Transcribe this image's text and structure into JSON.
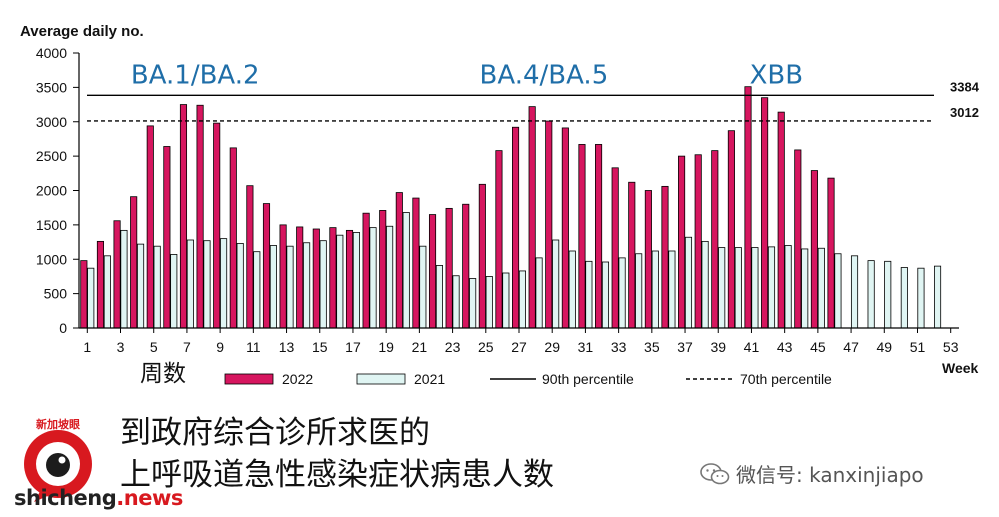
{
  "chart_data": {
    "type": "bar",
    "ylabel": "Average daily no.",
    "xlabel": "Week",
    "ylim": [
      0,
      4000
    ],
    "yticks": [
      0,
      500,
      1000,
      1500,
      2000,
      2500,
      3000,
      3500,
      4000
    ],
    "xticks": [
      1,
      3,
      5,
      7,
      9,
      11,
      13,
      15,
      17,
      19,
      21,
      23,
      25,
      27,
      29,
      31,
      33,
      35,
      37,
      39,
      41,
      43,
      45,
      47,
      49,
      51,
      53
    ],
    "xaxis_note": "周数",
    "weeks": [
      1,
      2,
      3,
      4,
      5,
      6,
      7,
      8,
      9,
      10,
      11,
      12,
      13,
      14,
      15,
      16,
      17,
      18,
      19,
      20,
      21,
      22,
      23,
      24,
      25,
      26,
      27,
      28,
      29,
      30,
      31,
      32,
      33,
      34,
      35,
      36,
      37,
      38,
      39,
      40,
      41,
      42,
      43,
      44,
      45,
      46,
      47,
      48,
      49,
      50,
      51,
      52,
      53
    ],
    "series": [
      {
        "name": "2022",
        "color": "#d6165f",
        "values": [
          980,
          1260,
          1560,
          1910,
          2940,
          2640,
          3250,
          3240,
          2980,
          2620,
          2070,
          1810,
          1500,
          1470,
          1440,
          1460,
          1420,
          1670,
          1710,
          1970,
          1890,
          1650,
          1740,
          1800,
          2090,
          2580,
          2920,
          3220,
          3010,
          2910,
          2670,
          2670,
          2330,
          2120,
          2000,
          2060,
          2500,
          2520,
          2580,
          2870,
          3510,
          3350,
          3140,
          2590,
          2290,
          2180,
          null,
          null,
          null,
          null,
          null,
          null,
          null
        ]
      },
      {
        "name": "2021",
        "color": "#e0f5f3",
        "values": [
          870,
          1050,
          1420,
          1220,
          1190,
          1070,
          1280,
          1270,
          1300,
          1230,
          1110,
          1200,
          1190,
          1240,
          1270,
          1350,
          1390,
          1460,
          1480,
          1680,
          1190,
          910,
          760,
          720,
          750,
          800,
          830,
          1020,
          1280,
          1120,
          970,
          960,
          1020,
          1080,
          1120,
          1120,
          1320,
          1260,
          1170,
          1170,
          1170,
          1180,
          1200,
          1150,
          1160,
          1080,
          1050,
          980,
          970,
          880,
          870,
          900,
          null
        ]
      }
    ],
    "reference_lines": [
      {
        "name": "90th percentile",
        "value": 3384,
        "label": "3384",
        "style": "solid"
      },
      {
        "name": "70th percentile",
        "value": 3012,
        "label": "3012",
        "style": "dashed"
      }
    ],
    "annotations": [
      {
        "text": "BA.1/BA.2",
        "week": 7.5,
        "value": 3720
      },
      {
        "text": "BA.4/BA.5",
        "week": 28.5,
        "value": 3720
      },
      {
        "text": "XBB",
        "week": 42.5,
        "value": 3720
      }
    ],
    "legend": [
      {
        "label": "2022",
        "kind": "bar",
        "color": "#d6165f"
      },
      {
        "label": "2021",
        "kind": "bar",
        "color": "#e0f5f3"
      },
      {
        "label": "90th percentile",
        "kind": "solid-line"
      },
      {
        "label": "70th percentile",
        "kind": "dashed-line"
      }
    ],
    "legend_placement": "bottom",
    "grid": false
  },
  "caption": {
    "line1": "到政府综合诊所求医的",
    "line2": "上呼吸道急性感染症状病患人数"
  },
  "watermark": {
    "logo_text": "新加坡眼",
    "site_name": "shicheng",
    "site_tld": ".news",
    "wechat_icon": "wechat-icon",
    "wechat_label": "微信号: kanxinjiapo"
  }
}
